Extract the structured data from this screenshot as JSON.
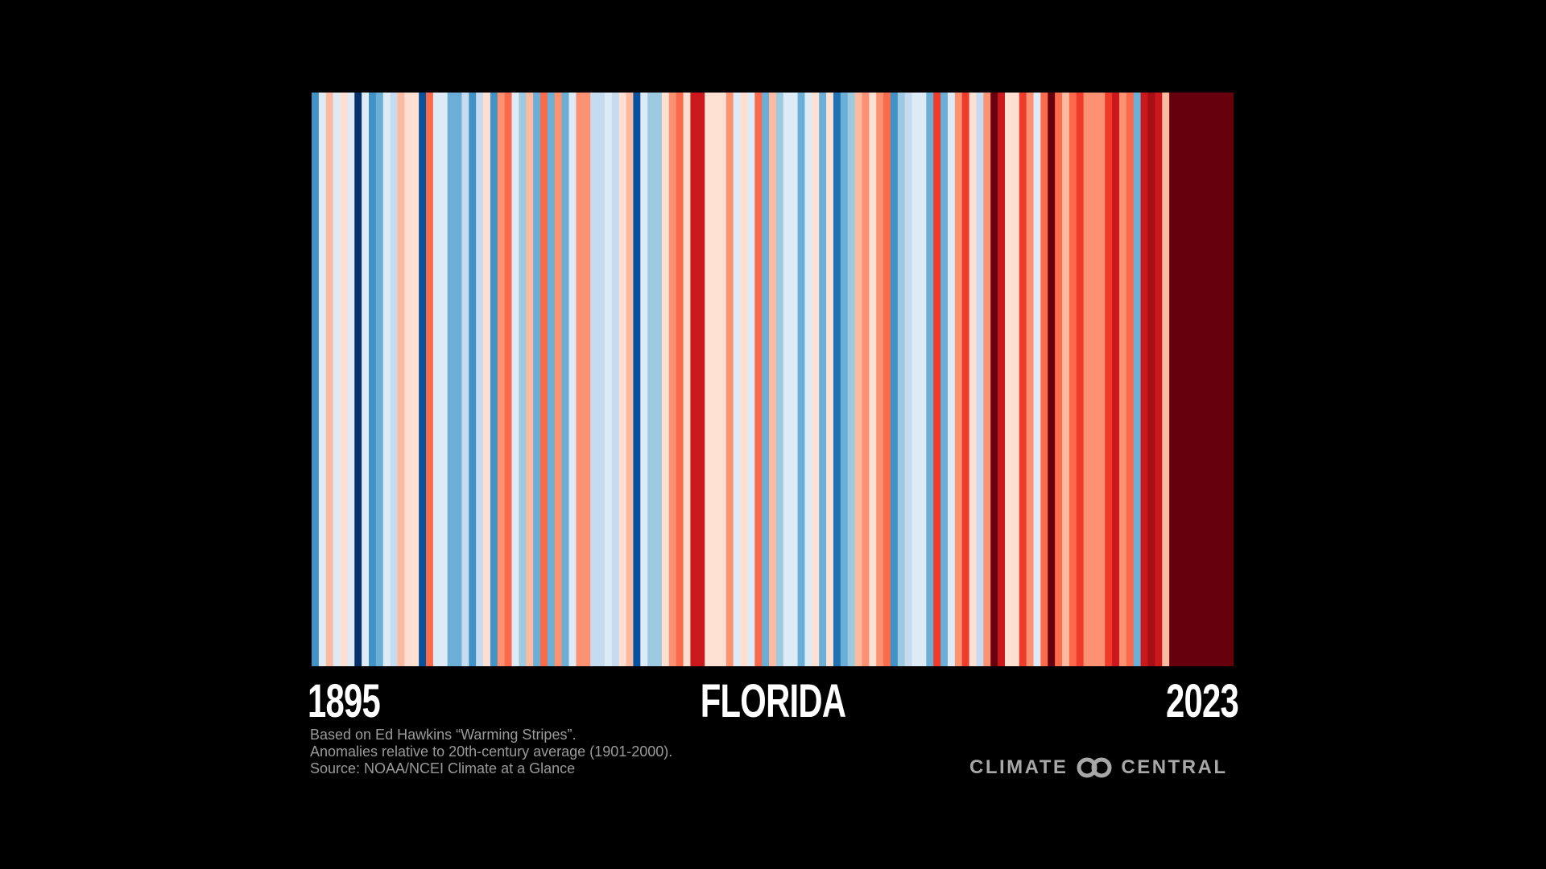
{
  "chart_data": {
    "type": "heatmap",
    "title": "FLORIDA",
    "start_year_label": "1895",
    "end_year_label": "2023",
    "year_range": [
      1895,
      2023
    ],
    "legend": "none",
    "grid": false,
    "stripe_colors": [
      "#4292c6",
      "#deebf7",
      "#fcbba1",
      "#deebf7",
      "#fee0d2",
      "#deebf7",
      "#08306b",
      "#deebf7",
      "#4292c6",
      "#6baed6",
      "#deebf7",
      "#c6dbef",
      "#fcbba1",
      "#fee0d2",
      "#fee0d2",
      "#08519c",
      "#fb6a4a",
      "#deebf7",
      "#deebf7",
      "#6baed6",
      "#6baed6",
      "#c6dbef",
      "#4292c6",
      "#c6dbef",
      "#fee0d2",
      "#4292c6",
      "#fc9272",
      "#fb6a4a",
      "#deebf7",
      "#9ecae1",
      "#fcbba1",
      "#6baed6",
      "#fb6a4a",
      "#6baed6",
      "#fc9272",
      "#6baed6",
      "#deebf7",
      "#fc9272",
      "#fc9272",
      "#c6dbef",
      "#c6dbef",
      "#deebf7",
      "#c6dbef",
      "#fee0d2",
      "#fcbba1",
      "#08519c",
      "#deebf7",
      "#9ecae1",
      "#9ecae1",
      "#fee0d2",
      "#fc9272",
      "#fb6a4a",
      "#fee0d2",
      "#cb181d",
      "#cb181d",
      "#fee0d2",
      "#fee0d2",
      "#fee0d2",
      "#fc9272",
      "#deebf7",
      "#fee0d2",
      "#deebf7",
      "#fb6a4a",
      "#6baed6",
      "#fcbba1",
      "#9ecae1",
      "#deebf7",
      "#deebf7",
      "#6baed6",
      "#deebf7",
      "#fee0d2",
      "#6baed6",
      "#fee0d2",
      "#2171b5",
      "#6baed6",
      "#9ecae1",
      "#fcbba1",
      "#fc9272",
      "#fee0d2",
      "#fc9272",
      "#fb6a4a",
      "#4292c6",
      "#9ecae1",
      "#c6dbef",
      "#deebf7",
      "#deebf7",
      "#6baed6",
      "#ef3b2c",
      "#6baed6",
      "#deebf7",
      "#fc9272",
      "#ef3b2c",
      "#fee0d2",
      "#c6dbef",
      "#fc9272",
      "#67000d",
      "#cb181d",
      "#fee0d2",
      "#fee0d2",
      "#ef3b2c",
      "#fc9272",
      "#deebf7",
      "#fb6a4a",
      "#67000d",
      "#fb6a4a",
      "#fcbba1",
      "#fb6a4a",
      "#ef3b2c",
      "#fc9272",
      "#fc9272",
      "#fc9272",
      "#ef3b2c",
      "#cb181d",
      "#fc9272",
      "#fb6a4a",
      "#6baed6",
      "#cb181d",
      "#a50f15",
      "#cb181d",
      "#fcbba1",
      "#67000d",
      "#67000d",
      "#67000d",
      "#67000d",
      "#67000d",
      "#67000d",
      "#67000d",
      "#67000d",
      "#67000d"
    ]
  },
  "notes": [
    "Based on Ed Hawkins “Warming Stripes”.",
    "Anomalies relative to 20th-century average (1901-2000).",
    "Source: NOAA/NCEI Climate at a Glance"
  ],
  "logo": {
    "left": "CLIMATE",
    "right": "CENTRAL"
  },
  "colors": {
    "background": "#000000",
    "text": "#ffffff",
    "notes": "#9a9a9a"
  }
}
